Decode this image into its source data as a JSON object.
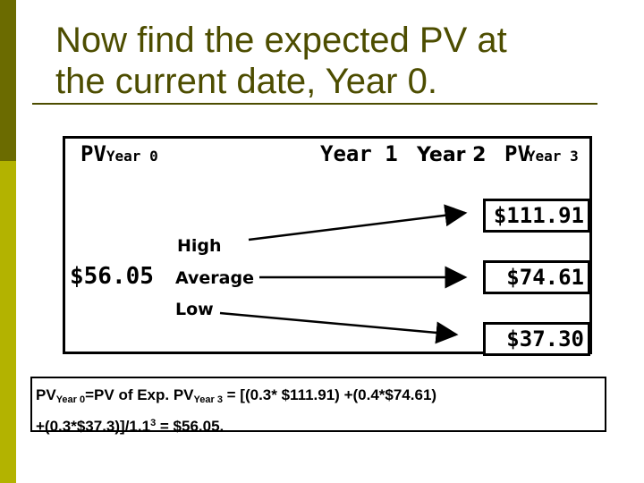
{
  "slide": {
    "title_line1": "Now find the expected PV at",
    "title_line2": "the current date, Year 0.",
    "colors": {
      "title": "#4d4d00",
      "band_dark": "#6b6b00",
      "band_light": "#b3b300"
    }
  },
  "diagram": {
    "header_pv": "PV",
    "header_pv_sub": "Year 0",
    "header_year1": "Year 1",
    "header_year2": "Year 2",
    "header_pv3": "PV",
    "header_pv3_sub": "Year 3",
    "present_value": "$56.05",
    "scenario_high": "High",
    "scenario_average": "Average",
    "scenario_low": "Low",
    "value_high": "$111.91",
    "value_average": "$74.61",
    "value_low": "$37.30"
  },
  "formula": {
    "pv": "PV",
    "sub_year0": "Year 0",
    "part1": "=PV of Exp. PV",
    "sub_year3": "Year 3",
    "part2": " = [(0.3* $111.91) +(0.4*$74.61)",
    "line2_start": "+(0.3*$37.3)]/1.1",
    "exponent": "3",
    "line2_end": " = $56.05."
  }
}
